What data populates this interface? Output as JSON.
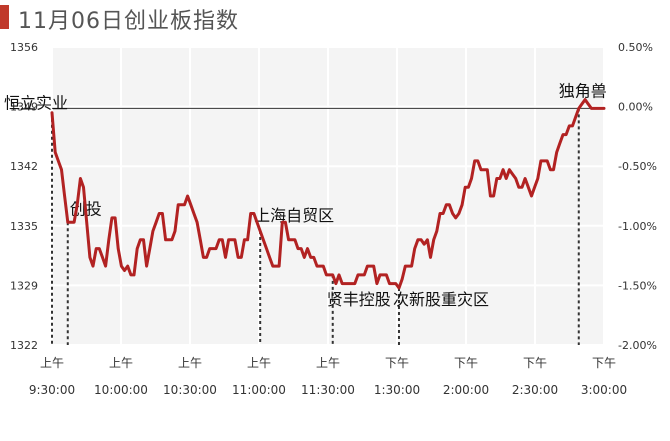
{
  "header": {
    "title": "11月06日创业板指数",
    "accent_color": "#c0392b"
  },
  "chart_data": {
    "type": "line",
    "title": "11月06日创业板指数",
    "xlabel": "",
    "ylabel": "",
    "ylim": [
      1322,
      1356
    ],
    "y_ticks": [
      1356,
      1349,
      1342,
      1335,
      1329,
      1322
    ],
    "y2_ticks": [
      "0.50%",
      "0.00%",
      "-0.50%",
      "-1.00%",
      "-1.50%",
      "-2.00%"
    ],
    "prev_close": 1349,
    "x_ticks": [
      {
        "time": "9:30:00",
        "period": "上午"
      },
      {
        "time": "10:00:00",
        "period": "上午"
      },
      {
        "time": "10:30:00",
        "period": "上午"
      },
      {
        "time": "11:00:00",
        "period": "上午"
      },
      {
        "time": "11:30:00",
        "period": "上午"
      },
      {
        "time": "1:30:00",
        "period": "下午"
      },
      {
        "time": "2:00:00",
        "period": "下午"
      },
      {
        "time": "2:30:00",
        "period": "下午"
      },
      {
        "time": "3:00:00",
        "period": "下午"
      }
    ],
    "line_color": "#b22222",
    "series": [
      {
        "points": [
          [
            0,
            1348.5
          ],
          [
            1,
            1344
          ],
          [
            2,
            1343
          ],
          [
            3,
            1342
          ],
          [
            4,
            1339
          ],
          [
            5,
            1336
          ],
          [
            6,
            1336
          ],
          [
            7,
            1336
          ],
          [
            8,
            1338
          ],
          [
            9,
            1341
          ],
          [
            10,
            1340
          ],
          [
            11,
            1336
          ],
          [
            12,
            1332
          ],
          [
            13,
            1331
          ],
          [
            14,
            1333
          ],
          [
            15,
            1333
          ],
          [
            16,
            1332
          ],
          [
            17,
            1331
          ],
          [
            18,
            1334
          ],
          [
            19,
            1336.5
          ],
          [
            20,
            1336.5
          ],
          [
            21,
            1333
          ],
          [
            22,
            1331
          ],
          [
            23,
            1330.5
          ],
          [
            24,
            1331
          ],
          [
            25,
            1330
          ],
          [
            26,
            1330
          ],
          [
            27,
            1333
          ],
          [
            28,
            1334
          ],
          [
            29,
            1334
          ],
          [
            30,
            1331
          ],
          [
            31,
            1333
          ],
          [
            32,
            1335
          ],
          [
            33,
            1336
          ],
          [
            34,
            1337
          ],
          [
            35,
            1337
          ],
          [
            36,
            1334
          ],
          [
            37,
            1334
          ],
          [
            38,
            1334
          ],
          [
            39,
            1335
          ],
          [
            40,
            1338
          ],
          [
            41,
            1338
          ],
          [
            42,
            1338
          ],
          [
            43,
            1339
          ],
          [
            44,
            1338
          ],
          [
            45,
            1337
          ],
          [
            46,
            1336
          ],
          [
            47,
            1334
          ],
          [
            48,
            1332
          ],
          [
            49,
            1332
          ],
          [
            50,
            1333
          ],
          [
            51,
            1333
          ],
          [
            52,
            1333
          ],
          [
            53,
            1334
          ],
          [
            54,
            1334
          ],
          [
            55,
            1332
          ],
          [
            56,
            1334
          ],
          [
            57,
            1334
          ],
          [
            58,
            1334
          ],
          [
            59,
            1332
          ],
          [
            60,
            1332
          ],
          [
            61,
            1334
          ],
          [
            62,
            1334
          ],
          [
            63,
            1337
          ],
          [
            64,
            1337
          ],
          [
            65,
            1336
          ],
          [
            66,
            1335
          ],
          [
            67,
            1334
          ],
          [
            68,
            1333
          ],
          [
            69,
            1332
          ],
          [
            70,
            1331
          ],
          [
            71,
            1331
          ],
          [
            72,
            1331
          ],
          [
            73,
            1336
          ],
          [
            74,
            1336
          ],
          [
            75,
            1334
          ],
          [
            76,
            1334
          ],
          [
            77,
            1334
          ],
          [
            78,
            1333
          ],
          [
            79,
            1333
          ],
          [
            80,
            1332
          ],
          [
            81,
            1333
          ],
          [
            82,
            1332
          ],
          [
            83,
            1332
          ],
          [
            84,
            1331
          ],
          [
            85,
            1331
          ],
          [
            86,
            1331
          ],
          [
            87,
            1330
          ],
          [
            88,
            1330
          ],
          [
            89,
            1330
          ],
          [
            90,
            1329
          ],
          [
            91,
            1330
          ],
          [
            92,
            1329
          ],
          [
            93,
            1329
          ],
          [
            94,
            1329
          ],
          [
            95,
            1329
          ],
          [
            96,
            1329
          ],
          [
            97,
            1330
          ],
          [
            98,
            1330
          ],
          [
            99,
            1330
          ],
          [
            100,
            1331
          ],
          [
            101,
            1331
          ],
          [
            102,
            1331
          ],
          [
            103,
            1329
          ],
          [
            104,
            1330
          ],
          [
            105,
            1330
          ],
          [
            106,
            1330
          ],
          [
            107,
            1329
          ],
          [
            108,
            1329
          ],
          [
            109,
            1329
          ],
          [
            110,
            1328.5
          ],
          [
            111,
            1329.5
          ],
          [
            112,
            1331
          ],
          [
            113,
            1331
          ],
          [
            114,
            1331
          ],
          [
            115,
            1333
          ],
          [
            116,
            1334
          ],
          [
            117,
            1334
          ],
          [
            118,
            1333.5
          ],
          [
            119,
            1334
          ],
          [
            120,
            1332
          ],
          [
            121,
            1334
          ],
          [
            122,
            1335
          ],
          [
            123,
            1337
          ],
          [
            124,
            1337
          ],
          [
            125,
            1338
          ],
          [
            126,
            1338
          ],
          [
            127,
            1337
          ],
          [
            128,
            1336.5
          ],
          [
            129,
            1337
          ],
          [
            130,
            1338
          ],
          [
            131,
            1340
          ],
          [
            132,
            1340
          ],
          [
            133,
            1341
          ],
          [
            134,
            1343
          ],
          [
            135,
            1343
          ],
          [
            136,
            1342
          ],
          [
            137,
            1342
          ],
          [
            138,
            1342
          ],
          [
            139,
            1339
          ],
          [
            140,
            1339
          ],
          [
            141,
            1341
          ],
          [
            142,
            1341
          ],
          [
            143,
            1342
          ],
          [
            144,
            1341
          ],
          [
            145,
            1342
          ],
          [
            146,
            1341.5
          ],
          [
            147,
            1341
          ],
          [
            148,
            1340
          ],
          [
            149,
            1340
          ],
          [
            150,
            1341
          ],
          [
            151,
            1340
          ],
          [
            152,
            1339
          ],
          [
            153,
            1340
          ],
          [
            154,
            1341
          ],
          [
            155,
            1343
          ],
          [
            156,
            1343
          ],
          [
            157,
            1343
          ],
          [
            158,
            1342
          ],
          [
            159,
            1342
          ],
          [
            160,
            1344
          ],
          [
            161,
            1345
          ],
          [
            162,
            1346
          ],
          [
            163,
            1346
          ],
          [
            164,
            1347
          ],
          [
            165,
            1347
          ],
          [
            166,
            1348
          ],
          [
            167,
            1349
          ],
          [
            168,
            1349.5
          ],
          [
            169,
            1350
          ],
          [
            170,
            1349.5
          ],
          [
            171,
            1349
          ],
          [
            172,
            1349
          ],
          [
            173,
            1349
          ],
          [
            174,
            1349
          ],
          [
            175,
            1349
          ]
        ]
      }
    ],
    "annotations": [
      {
        "label": "恒立实业",
        "x": 0,
        "label_at": "top-left"
      },
      {
        "label": "创投",
        "x": 5,
        "label_at": "top"
      },
      {
        "label": "上海自贸区",
        "x": 66,
        "label_at": "top"
      },
      {
        "label": "贤丰控股",
        "x": 89,
        "label_at": "bottom"
      },
      {
        "label": "次新股重灾区",
        "x": 110,
        "label_at": "bottom"
      },
      {
        "label": "独角兽",
        "x": 167,
        "label_at": "top"
      }
    ]
  }
}
